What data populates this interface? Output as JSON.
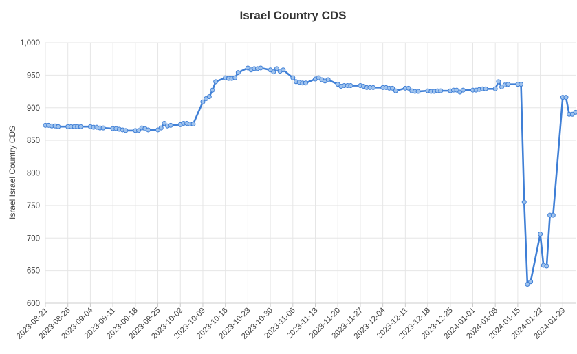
{
  "chart_data": {
    "type": "line",
    "title": "Israel Country CDS",
    "xlabel": "",
    "ylabel": "Israel Israel Country CDS",
    "ylim": [
      600,
      1000
    ],
    "yticks": [
      600,
      650,
      700,
      750,
      800,
      850,
      900,
      950,
      1000
    ],
    "ytick_labels": [
      "600",
      "650",
      "700",
      "750",
      "800",
      "850",
      "900",
      "950",
      "1,000"
    ],
    "xtick_labels": [
      "2023-08-21",
      "2023-08-28",
      "2023-09-04",
      "2023-09-11",
      "2023-09-18",
      "2023-09-25",
      "2023-10-02",
      "2023-10-09",
      "2023-10-16",
      "2023-10-23",
      "2023-10-30",
      "2023-11-06",
      "2023-11-13",
      "2023-11-20",
      "2023-11-27",
      "2023-12-04",
      "2023-12-11",
      "2023-12-18",
      "2023-12-25",
      "2024-01-01",
      "2024-01-08",
      "2024-01-15",
      "2024-01-22",
      "2024-01-29"
    ],
    "grid": true,
    "legend": "none",
    "color": "#3f7fd6",
    "series": [
      {
        "x": [
          "2023-08-21",
          "2023-08-22",
          "2023-08-23",
          "2023-08-24",
          "2023-08-25",
          "2023-08-28",
          "2023-08-29",
          "2023-08-30",
          "2023-08-31",
          "2023-09-01",
          "2023-09-04",
          "2023-09-05",
          "2023-09-06",
          "2023-09-07",
          "2023-09-08",
          "2023-09-11",
          "2023-09-12",
          "2023-09-13",
          "2023-09-14",
          "2023-09-15",
          "2023-09-18",
          "2023-09-19",
          "2023-09-20",
          "2023-09-21",
          "2023-09-22",
          "2023-09-25",
          "2023-09-26",
          "2023-09-27",
          "2023-09-28",
          "2023-09-29",
          "2023-10-02",
          "2023-10-03",
          "2023-10-04",
          "2023-10-05",
          "2023-10-06",
          "2023-10-09",
          "2023-10-10",
          "2023-10-11",
          "2023-10-12",
          "2023-10-13",
          "2023-10-16",
          "2023-10-17",
          "2023-10-18",
          "2023-10-19",
          "2023-10-20",
          "2023-10-23",
          "2023-10-24",
          "2023-10-25",
          "2023-10-26",
          "2023-10-27",
          "2023-10-30",
          "2023-10-31",
          "2023-11-01",
          "2023-11-02",
          "2023-11-03",
          "2023-11-06",
          "2023-11-07",
          "2023-11-08",
          "2023-11-09",
          "2023-11-10",
          "2023-11-13",
          "2023-11-14",
          "2023-11-15",
          "2023-11-16",
          "2023-11-17",
          "2023-11-20",
          "2023-11-21",
          "2023-11-22",
          "2023-11-23",
          "2023-11-24",
          "2023-11-27",
          "2023-11-28",
          "2023-11-29",
          "2023-11-30",
          "2023-12-01",
          "2023-12-04",
          "2023-12-05",
          "2023-12-06",
          "2023-12-07",
          "2023-12-08",
          "2023-12-11",
          "2023-12-12",
          "2023-12-13",
          "2023-12-14",
          "2023-12-15",
          "2023-12-18",
          "2023-12-19",
          "2023-12-20",
          "2023-12-21",
          "2023-12-22",
          "2023-12-25",
          "2023-12-26",
          "2023-12-27",
          "2023-12-28",
          "2023-12-29",
          "2024-01-01",
          "2024-01-02",
          "2024-01-03",
          "2024-01-04",
          "2024-01-05",
          "2024-01-08",
          "2024-01-09",
          "2024-01-10",
          "2024-01-11",
          "2024-01-12",
          "2024-01-15",
          "2024-01-16",
          "2024-01-17",
          "2024-01-18",
          "2024-01-19",
          "2024-01-22",
          "2024-01-23",
          "2024-01-24",
          "2024-01-25",
          "2024-01-26",
          "2024-01-29",
          "2024-01-30",
          "2024-01-31",
          "2024-02-01",
          "2024-02-02"
        ],
        "y": [
          873,
          873,
          872,
          872,
          871,
          871,
          871,
          871,
          871,
          871,
          871,
          870,
          870,
          869,
          869,
          868,
          868,
          867,
          866,
          865,
          865,
          865,
          869,
          868,
          866,
          866,
          869,
          876,
          872,
          873,
          874,
          876,
          876,
          875,
          875,
          909,
          914,
          917,
          927,
          940,
          946,
          945,
          945,
          946,
          954,
          961,
          958,
          960,
          960,
          961,
          958,
          955,
          960,
          956,
          958,
          946,
          940,
          939,
          938,
          938,
          944,
          946,
          943,
          941,
          943,
          936,
          933,
          934,
          934,
          934,
          934,
          933,
          931,
          931,
          931,
          931,
          931,
          930,
          930,
          926,
          930,
          930,
          926,
          925,
          925,
          926,
          925,
          925,
          926,
          926,
          926,
          927,
          927,
          924,
          927,
          927,
          927,
          928,
          929,
          929,
          929,
          940,
          932,
          935,
          936,
          936,
          936,
          755,
          629,
          633,
          706,
          658,
          657,
          735,
          735,
          916,
          916,
          890,
          890,
          893
        ]
      }
    ]
  }
}
